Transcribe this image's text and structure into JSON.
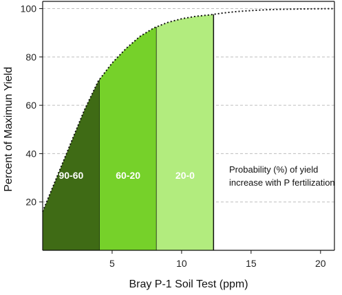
{
  "chart_data": {
    "type": "area",
    "xlabel": "Bray P-1 Soil Test (ppm)",
    "ylabel": "Percent of Maximun Yield",
    "xlim": [
      0,
      21
    ],
    "ylim": [
      0,
      103
    ],
    "x_ticks": [
      5,
      10,
      15,
      20
    ],
    "y_ticks": [
      20,
      40,
      60,
      80,
      100
    ],
    "grid": "horizontal dashed",
    "curve": {
      "x": [
        0,
        1,
        2,
        3,
        4,
        5,
        6,
        7,
        8,
        9,
        10,
        11,
        12,
        13,
        14,
        15,
        16,
        17,
        18,
        19,
        20,
        21
      ],
      "y": [
        16,
        30,
        44,
        58,
        70,
        77.5,
        83.5,
        88.5,
        92,
        94.3,
        95.8,
        96.8,
        97.4,
        98.2,
        98.8,
        99.2,
        99.5,
        99.7,
        99.8,
        99.9,
        99.95,
        100
      ]
    },
    "bands": [
      {
        "label": "90-60",
        "x_start": 0,
        "x_end": 4.1,
        "color": "#3f6b15"
      },
      {
        "label": "60-20",
        "x_start": 4.1,
        "x_end": 8.2,
        "color": "#76d12a"
      },
      {
        "label": "20-0",
        "x_start": 8.2,
        "x_end": 12.3,
        "color": "#b2ec7e"
      }
    ],
    "band_label_y": 31,
    "annotation": [
      "Probability (%) of yield",
      "increase with P fertilization"
    ]
  }
}
